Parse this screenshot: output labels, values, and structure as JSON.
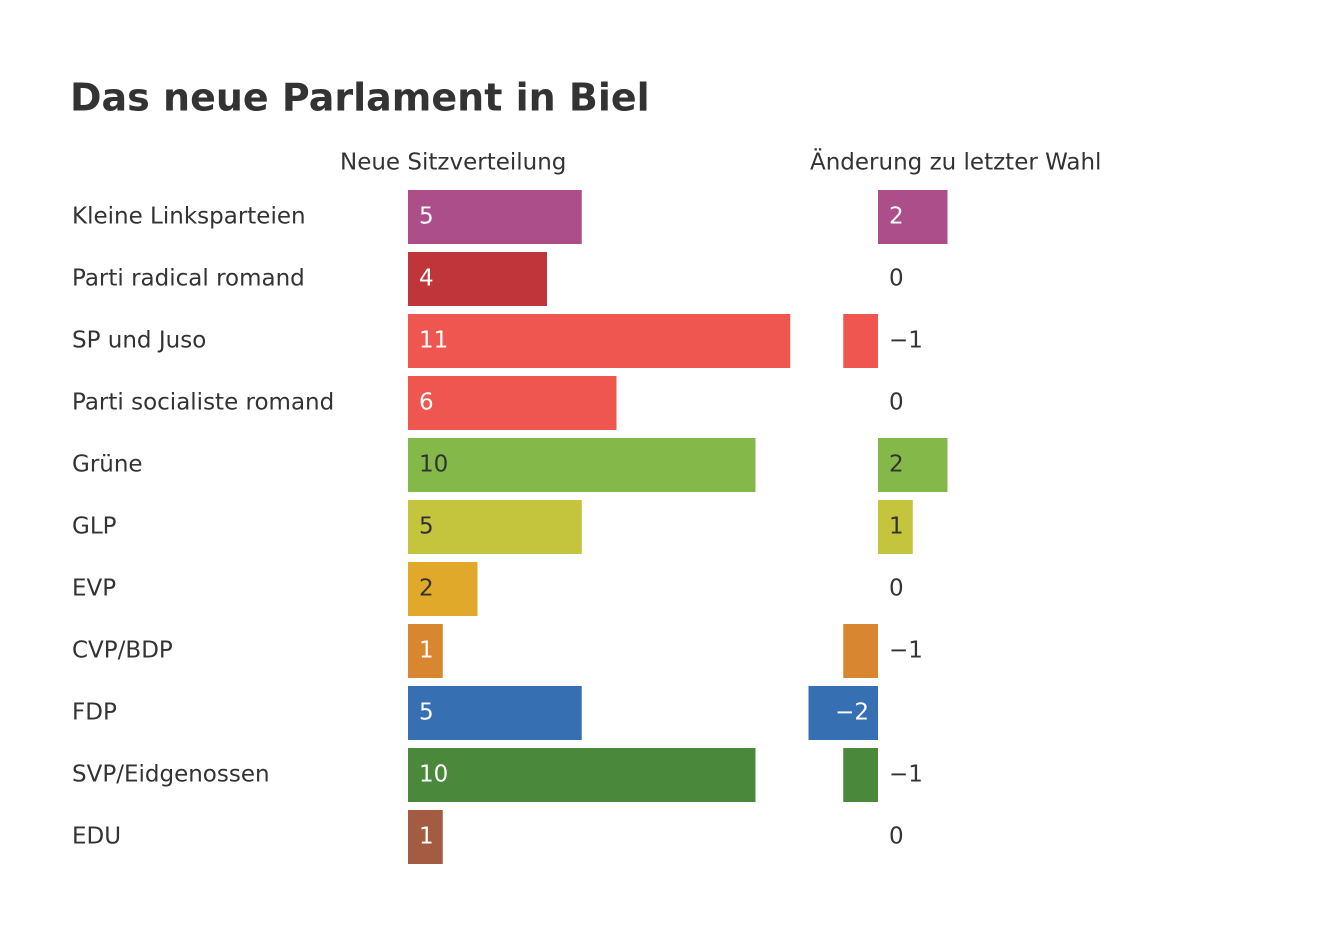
{
  "chart_data": {
    "type": "bar",
    "title": "Das neue Parlament in Biel",
    "categories": [
      "Kleine Linksparteien",
      "Parti radical romand",
      "SP und Juso",
      "Parti socialiste romand",
      "Grüne",
      "GLP",
      "EVP",
      "CVP/BDP",
      "FDP",
      "SVP/Eidgenossen",
      "EDU"
    ],
    "colors": [
      "#ab4e8a",
      "#c0353a",
      "#ef5650",
      "#ef5650",
      "#84b848",
      "#c5c43d",
      "#e0a929",
      "#d8862f",
      "#3670b3",
      "#4a883c",
      "#a35c42"
    ],
    "series": [
      {
        "name": "Neue Sitzverteilung",
        "values": [
          5,
          4,
          11,
          6,
          10,
          5,
          2,
          1,
          5,
          10,
          1
        ]
      },
      {
        "name": "Änderung zu letzter Wahl",
        "values": [
          2,
          0,
          -1,
          0,
          2,
          1,
          0,
          -1,
          -2,
          -1,
          0
        ],
        "value_labels": [
          "2",
          "0",
          "−1",
          "0",
          "2",
          "1",
          "0",
          "−1",
          "−2",
          "−1",
          "0"
        ]
      }
    ]
  }
}
